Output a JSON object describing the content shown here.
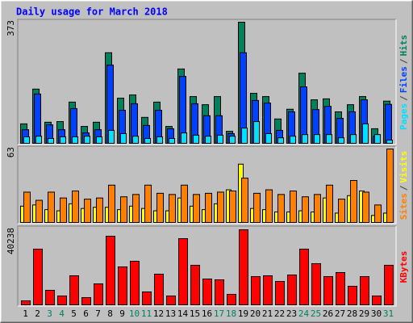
{
  "chart_data": [
    {
      "type": "bar",
      "title": "Daily usage for March 2018",
      "ylim": [
        0,
        373
      ],
      "yticks": [
        373
      ],
      "legend_separator": "/",
      "series": [
        {
          "name": "Hits",
          "color": "#00805c",
          "values": [
            60,
            167,
            65,
            67,
            127,
            52,
            65,
            279,
            139,
            149,
            80,
            127,
            52,
            229,
            144,
            119,
            144,
            37,
            373,
            154,
            144,
            75,
            105,
            216,
            134,
            137,
            97,
            119,
            144,
            45,
            130
          ]
        },
        {
          "name": "Files",
          "color": "#0040ff",
          "values": [
            42,
            152,
            57,
            42,
            107,
            32,
            42,
            241,
            102,
            122,
            55,
            102,
            45,
            206,
            122,
            85,
            85,
            30,
            279,
            132,
            124,
            40,
            97,
            174,
            104,
            114,
            77,
            97,
            134,
            22,
            120
          ]
        },
        {
          "name": "Pages",
          "color": "#00e0ff",
          "values": [
            20,
            22,
            15,
            20,
            20,
            22,
            20,
            40,
            30,
            22,
            15,
            20,
            15,
            32,
            25,
            22,
            25,
            22,
            47,
            67,
            30,
            17,
            22,
            27,
            27,
            27,
            17,
            27,
            60,
            27,
            10
          ]
        }
      ]
    },
    {
      "type": "bar",
      "ylim": [
        0,
        63
      ],
      "yticks": [
        63
      ],
      "legend_separator": "/",
      "series": [
        {
          "name": "Visits",
          "color": "#ffff00",
          "values": [
            14,
            15,
            11,
            10,
            16,
            12,
            13,
            13,
            11,
            14,
            12,
            10,
            10,
            21,
            14,
            11,
            16,
            28,
            50,
            12,
            11,
            9,
            9,
            10,
            9,
            21,
            8,
            23,
            27,
            6,
            8
          ]
        },
        {
          "name": "Sites",
          "color": "#ff8000",
          "values": [
            26,
            19,
            26,
            21,
            27,
            20,
            21,
            32,
            22,
            24,
            32,
            25,
            24,
            32,
            24,
            25,
            26,
            27,
            38,
            25,
            28,
            24,
            27,
            22,
            24,
            32,
            20,
            36,
            26,
            15,
            63
          ]
        }
      ]
    },
    {
      "type": "bar",
      "ylim": [
        0,
        40238
      ],
      "yticks": [
        40238
      ],
      "categories": [
        "1",
        "2",
        "3",
        "4",
        "5",
        "6",
        "7",
        "8",
        "9",
        "10",
        "11",
        "12",
        "13",
        "14",
        "15",
        "16",
        "17",
        "18",
        "19",
        "20",
        "21",
        "22",
        "23",
        "24",
        "25",
        "26",
        "27",
        "28",
        "29",
        "30",
        "31"
      ],
      "category_colors": [
        "#000000",
        "#000000",
        "#00805c",
        "#00805c",
        "#000000",
        "#000000",
        "#000000",
        "#000000",
        "#000000",
        "#00805c",
        "#00805c",
        "#000000",
        "#000000",
        "#000000",
        "#000000",
        "#000000",
        "#00805c",
        "#00805c",
        "#000000",
        "#000000",
        "#000000",
        "#000000",
        "#000000",
        "#00805c",
        "#00805c",
        "#000000",
        "#000000",
        "#000000",
        "#000000",
        "#000000",
        "#00805c"
      ],
      "series": [
        {
          "name": "KBytes",
          "color": "#ff0000",
          "values": [
            2163,
            29855,
            7788,
            4759,
            15576,
            3894,
            11249,
            36777,
            20335,
            23364,
            6923,
            16441,
            4759,
            35479,
            21201,
            13845,
            13413,
            5625,
            40238,
            15143,
            15576,
            12547,
            16008,
            29855,
            22066,
            15143,
            17306,
            9951,
            15143,
            4759,
            21201
          ]
        }
      ]
    }
  ]
}
